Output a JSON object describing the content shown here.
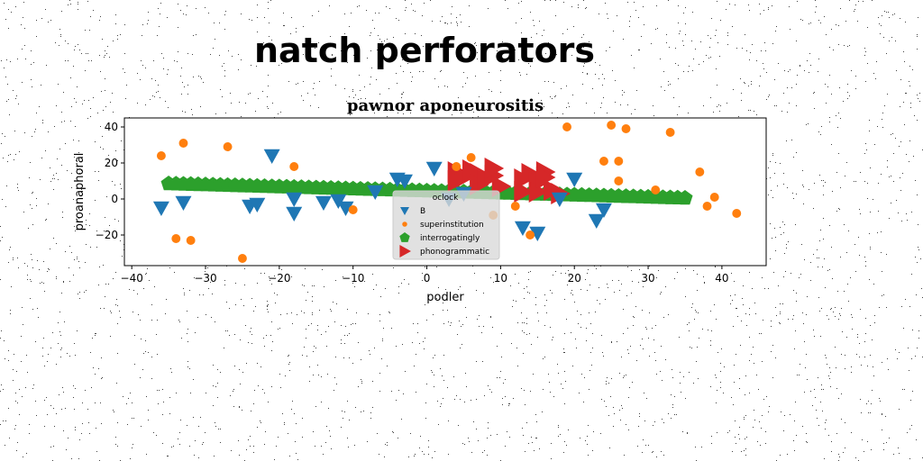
{
  "page": {
    "suptitle": "natch perforators"
  },
  "chart_data": {
    "type": "scatter",
    "title": "pawnor aponeurositis",
    "xlabel": "podler",
    "ylabel": "proanaphoral",
    "xlim": [
      -41,
      46
    ],
    "ylim": [
      -37,
      45
    ],
    "xticks": [
      -40,
      -30,
      -20,
      -10,
      0,
      10,
      20,
      30,
      40
    ],
    "yticks": [
      -20,
      0,
      20,
      40
    ],
    "grid": false,
    "legend": {
      "title": "oclock",
      "placement": "lower-center"
    },
    "series": [
      {
        "name": "B",
        "marker": "triangle-down",
        "color": "#1f77b4",
        "points": [
          [
            -36,
            -5
          ],
          [
            -33,
            -2
          ],
          [
            -24,
            -4
          ],
          [
            -23,
            -3
          ],
          [
            -21,
            24
          ],
          [
            -18,
            -8
          ],
          [
            -18,
            0
          ],
          [
            -14,
            -2
          ],
          [
            -12,
            -1
          ],
          [
            -11,
            -5
          ],
          [
            -7,
            4
          ],
          [
            -4,
            11
          ],
          [
            -3,
            10
          ],
          [
            1,
            17
          ],
          [
            3,
            0
          ],
          [
            5,
            3
          ],
          [
            13,
            -16
          ],
          [
            15,
            -19
          ],
          [
            18,
            0
          ],
          [
            20,
            11
          ],
          [
            23,
            -12
          ],
          [
            24,
            -6
          ]
        ]
      },
      {
        "name": "superinstitution",
        "marker": "circle",
        "color": "#ff7f0e",
        "points": [
          [
            -36,
            24
          ],
          [
            -34,
            -22
          ],
          [
            -33,
            31
          ],
          [
            -32,
            -23
          ],
          [
            -27,
            29
          ],
          [
            -25,
            -33
          ],
          [
            -18,
            18
          ],
          [
            -10,
            -6
          ],
          [
            4,
            18
          ],
          [
            6,
            23
          ],
          [
            9,
            -9
          ],
          [
            12,
            -4
          ],
          [
            14,
            -20
          ],
          [
            19,
            40
          ],
          [
            24,
            21
          ],
          [
            25,
            41
          ],
          [
            26,
            21
          ],
          [
            26,
            10
          ],
          [
            27,
            39
          ],
          [
            31,
            5
          ],
          [
            33,
            37
          ],
          [
            37,
            15
          ],
          [
            38,
            -4
          ],
          [
            39,
            1
          ],
          [
            42,
            -8
          ]
        ]
      },
      {
        "name": "interrogatingly",
        "marker": "pentagon",
        "color": "#2ca02c",
        "trend": {
          "x_from": -35,
          "x_to": 35,
          "step": 1,
          "y_at_start": 8.5,
          "y_at_end": 0.5
        }
      },
      {
        "name": "phonogrammatic",
        "marker": "triangle-right",
        "color": "#d62728",
        "points": [
          [
            4,
            15
          ],
          [
            4,
            10
          ],
          [
            5,
            12
          ],
          [
            6,
            16
          ],
          [
            7,
            14
          ],
          [
            7,
            8
          ],
          [
            8,
            11
          ],
          [
            9,
            13
          ],
          [
            9,
            17
          ],
          [
            10,
            7
          ],
          [
            13,
            11
          ],
          [
            13,
            4
          ],
          [
            14,
            14
          ],
          [
            15,
            9
          ],
          [
            15,
            4
          ],
          [
            16,
            15
          ],
          [
            16,
            12
          ],
          [
            17,
            5
          ],
          [
            18,
            3
          ]
        ]
      }
    ]
  }
}
